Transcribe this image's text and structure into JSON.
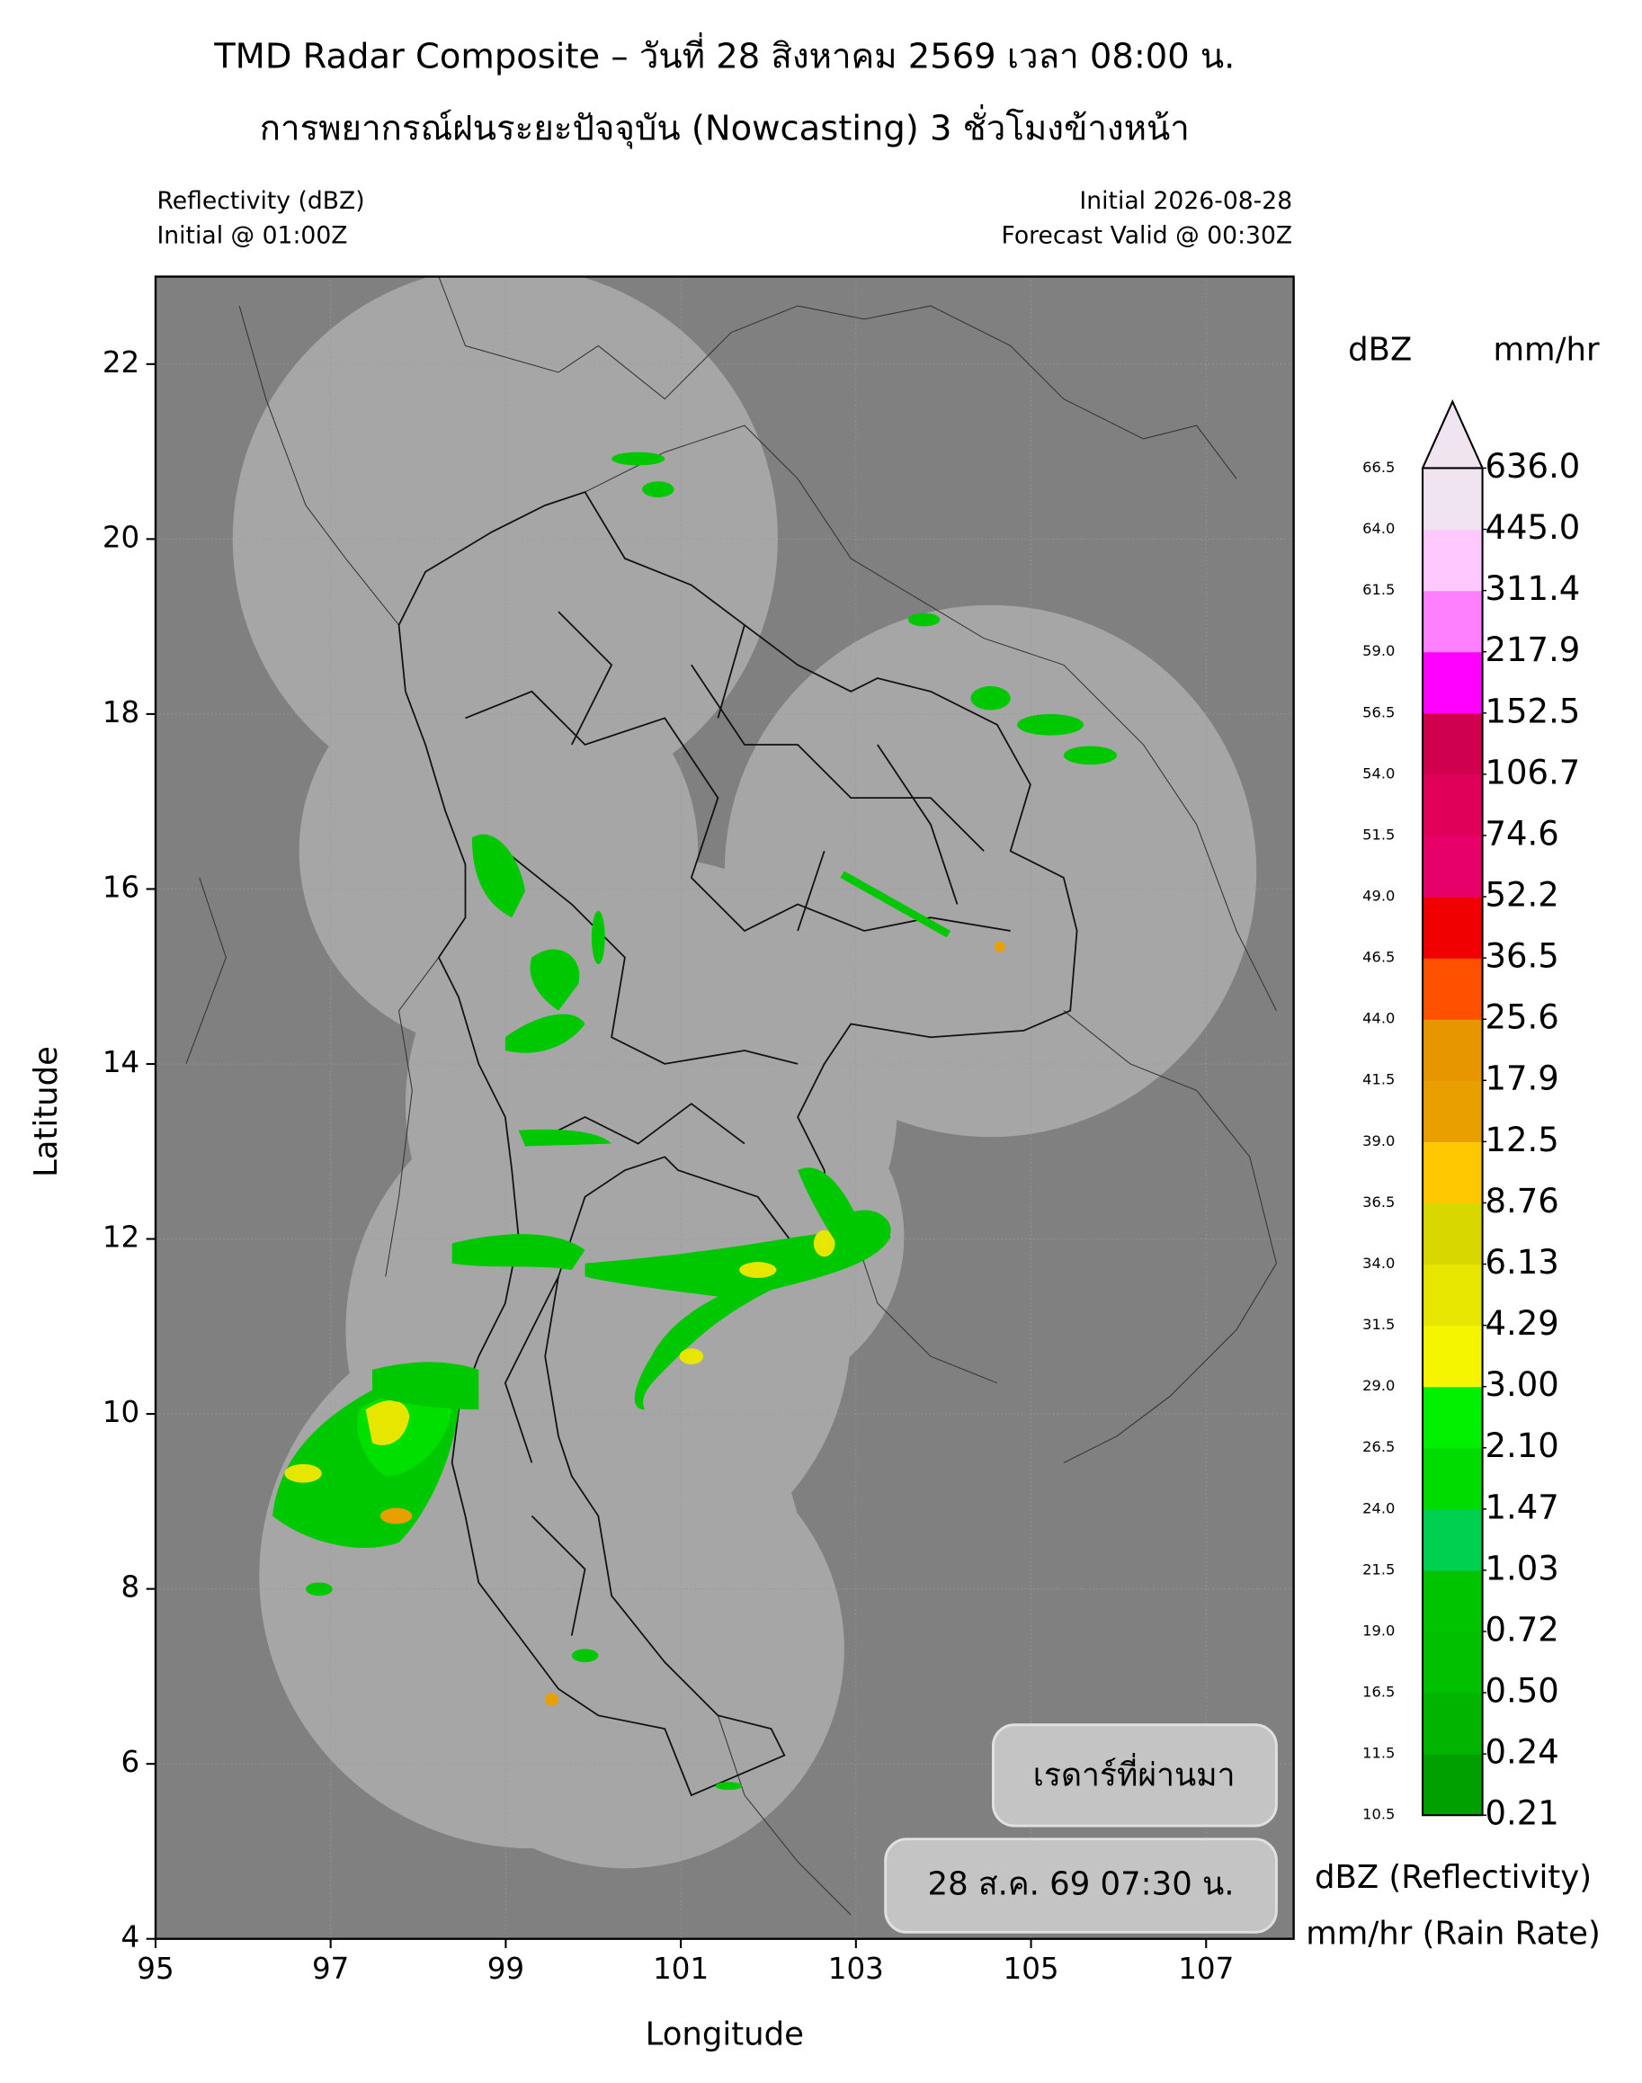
{
  "header": {
    "title": "TMD Radar Composite – วันที่ 28 สิงหาคม 2569 เวลา 08:00 น.",
    "subtitle": "การพยากรณ์ฝนระยะปัจจุบัน (Nowcasting) 3 ชั่วโมงข้างหน้า"
  },
  "labels": {
    "top_left": [
      "Reflectivity (dBZ)",
      "Initial @ 01:00Z"
    ],
    "top_right": [
      "Initial 2026-08-28",
      "Forecast Valid @ 00:30Z"
    ]
  },
  "map": {
    "xlabel": "Longitude",
    "ylabel": "Latitude",
    "xlim": [
      95,
      108
    ],
    "ylim": [
      4,
      23
    ],
    "xticks": [
      95,
      97,
      99,
      101,
      103,
      105,
      107
    ],
    "yticks": [
      4,
      6,
      8,
      10,
      12,
      14,
      16,
      18,
      20,
      22
    ],
    "grid": true,
    "background": "#808080",
    "coverage": "#a6a6a6"
  },
  "colorbar": {
    "dbz_title": "dBZ",
    "rate_title": "mm/hr",
    "dbz_levels": [
      10.5,
      11.5,
      16.5,
      {
        "value": 19,
        "label": "19.0"
      },
      21.5,
      {
        "value": 24,
        "label": "24.0"
      },
      26.5,
      {
        "value": 29,
        "label": "29.0"
      },
      31.5,
      {
        "value": 34,
        "label": "34.0"
      },
      36.5,
      {
        "value": 39,
        "label": "39.0"
      },
      41.5,
      {
        "value": 44,
        "label": "44.0"
      },
      46.5,
      {
        "value": 49,
        "label": "49.0"
      },
      51.5,
      {
        "value": 54,
        "label": "54.0"
      },
      56.5,
      {
        "value": 59,
        "label": "59.0"
      },
      61.5,
      {
        "value": 64,
        "label": "64.0"
      },
      66.5
    ],
    "rate_levels": [
      0.21,
      0.24,
      {
        "value": 0.5,
        "label": "0.50"
      },
      0.72,
      1.03,
      1.47,
      {
        "value": 2.1,
        "label": "2.10"
      },
      {
        "value": 3,
        "label": "3.00"
      },
      4.29,
      6.13,
      8.76,
      12.5,
      17.9,
      25.6,
      36.5,
      52.2,
      74.6,
      106.7,
      152.5,
      217.9,
      311.4,
      {
        "value": 445,
        "label": "445.0"
      },
      {
        "value": 636,
        "label": "636.0"
      }
    ],
    "colors": [
      "#00a000",
      "#00b400",
      "#00c000",
      "#00c400",
      "#00d050",
      "#00dc00",
      "#00f000",
      "#f5f500",
      "#e6e600",
      "#d8d800",
      "#ffc800",
      "#e8a000",
      "#e89600",
      "#ff5000",
      "#f00000",
      "#e8006a",
      "#e0005a",
      "#d0004f",
      "#ff00ff",
      "#ff80ff",
      "#ffc8ff",
      "#f0e4f0"
    ],
    "extend_color": "#f0e4f0",
    "legend": [
      "dBZ (Reflectivity)",
      "mm/hr (Rain Rate)"
    ]
  },
  "boxes": {
    "previous": "เรดาร์ที่ผ่านมา",
    "time": "28 ส.ค. 69 07:30 น."
  }
}
